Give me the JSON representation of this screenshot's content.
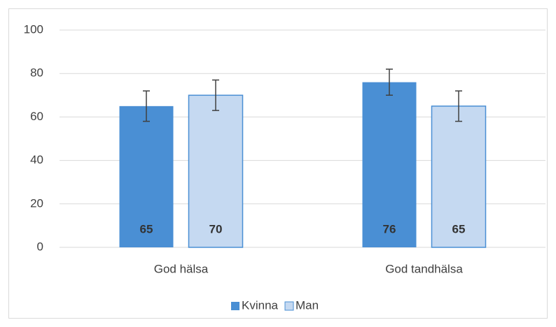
{
  "chart_data": {
    "type": "bar",
    "categories": [
      "God hälsa",
      "God tandhälsa"
    ],
    "series": [
      {
        "name": "Kvinna",
        "color": "#4a8fd4",
        "values": [
          65,
          76
        ],
        "errors": [
          7,
          6
        ]
      },
      {
        "name": "Man",
        "color": "#c5d9f1",
        "values": [
          70,
          65
        ],
        "errors": [
          7,
          7
        ]
      }
    ],
    "ylim": [
      0,
      100
    ],
    "yticks": [
      0,
      20,
      40,
      60,
      80,
      100
    ],
    "grid": true,
    "legend": "bottom"
  }
}
